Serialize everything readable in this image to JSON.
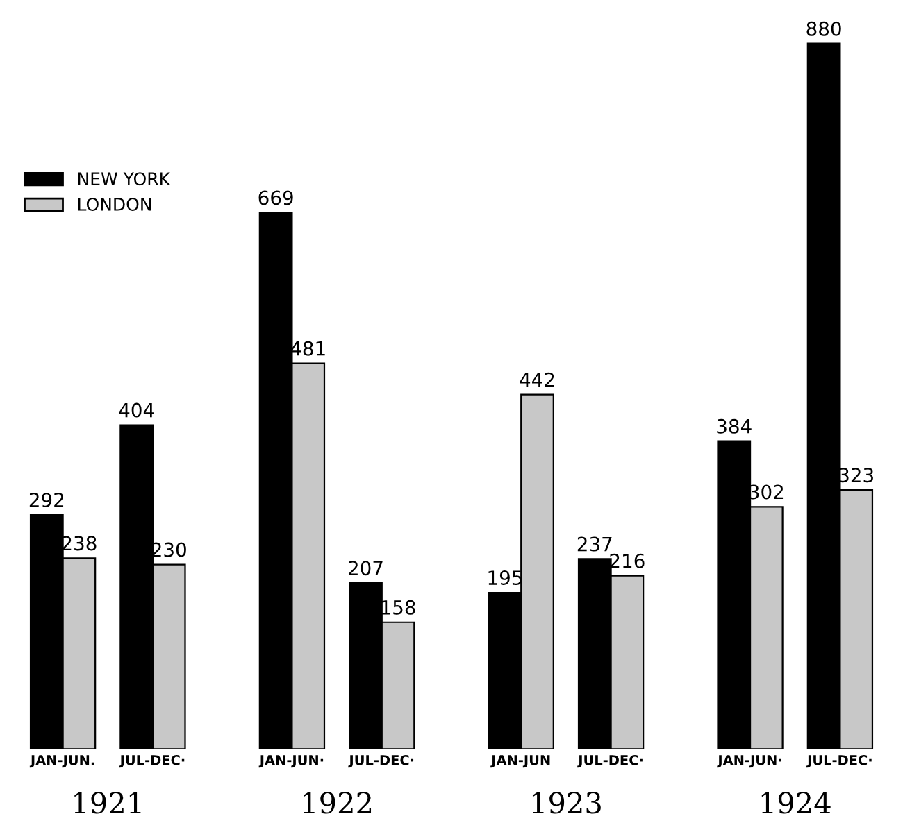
{
  "chart_data": {
    "type": "bar",
    "categories": [
      "JAN-JUN.",
      "JUL-DEC·",
      "JAN-JUN·",
      "JUL-DEC·",
      "JAN-JUN",
      "JUL-DEC·",
      "JAN-JUN·",
      "JUL-DEC·"
    ],
    "series": [
      {
        "name": "NEW YORK",
        "color": "#000000",
        "values": [
          292,
          404,
          669,
          207,
          195,
          237,
          384,
          880
        ]
      },
      {
        "name": "LONDON",
        "color": "#c8c8c8",
        "values": [
          238,
          230,
          481,
          158,
          442,
          216,
          302,
          323
        ]
      }
    ],
    "annotations": [
      "1921",
      "1922",
      "1923",
      "1924"
    ],
    "data_labels": true,
    "legend": "top left",
    "grid": false
  }
}
